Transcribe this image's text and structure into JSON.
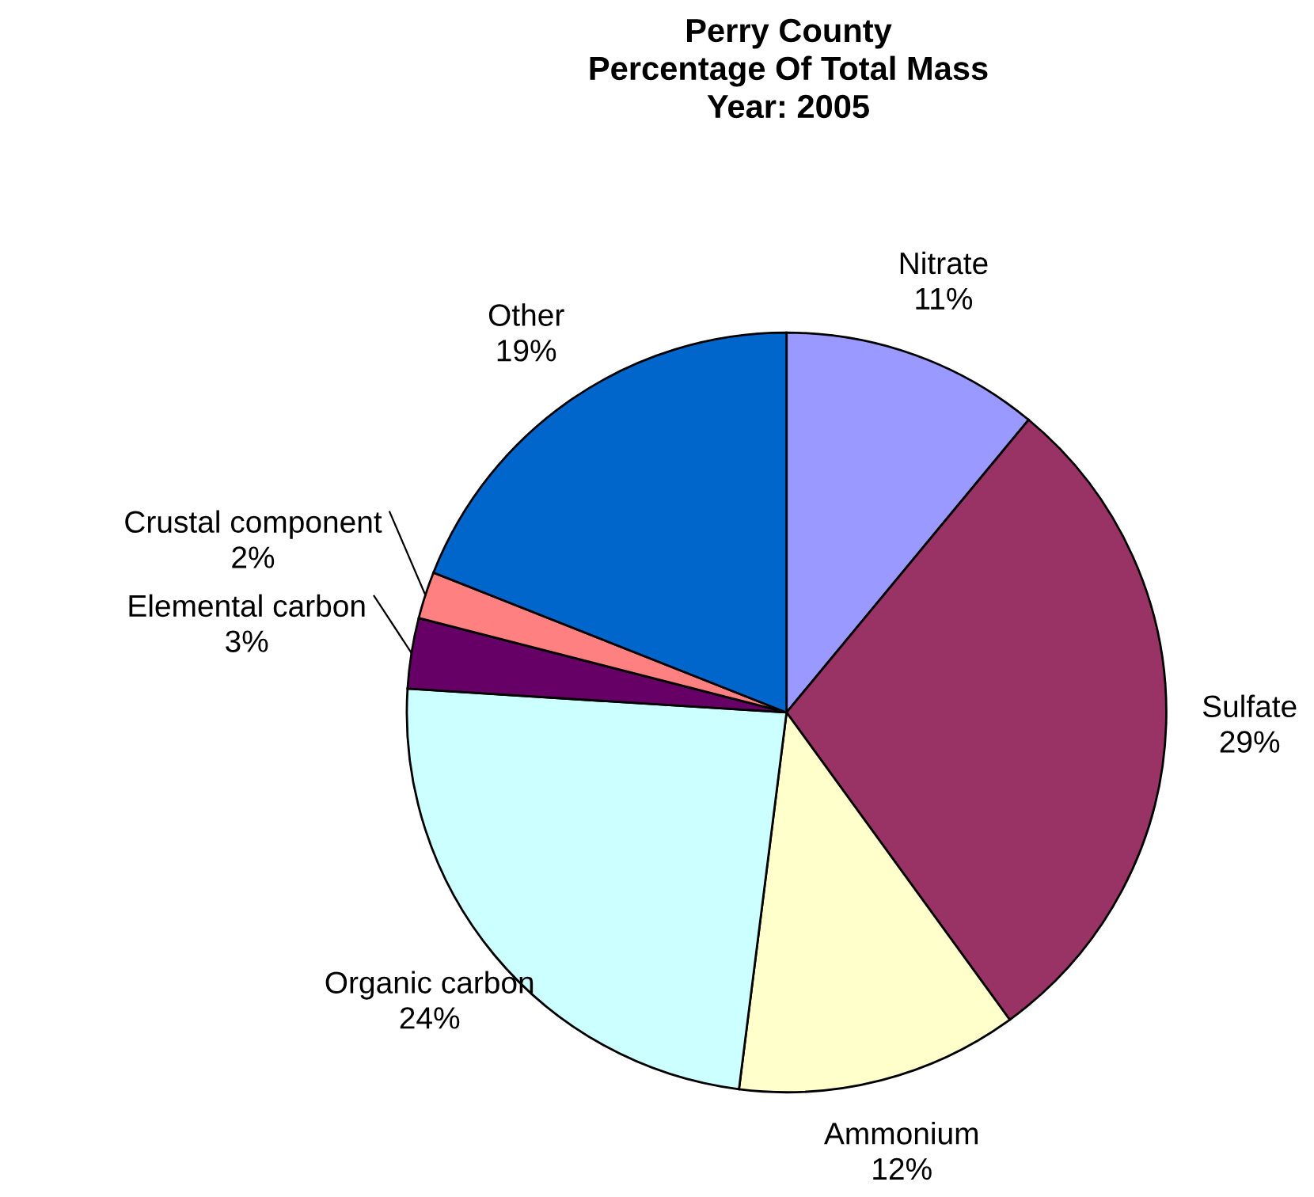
{
  "chart_data": {
    "type": "pie",
    "title": "Perry County\nPercentage Of Total Mass\nYear: 2005",
    "categories": [
      "Nitrate",
      "Sulfate",
      "Ammonium",
      "Organic carbon",
      "Elemental carbon",
      "Crustal component",
      "Other"
    ],
    "values": [
      11,
      29,
      12,
      24,
      3,
      2,
      19
    ],
    "colors": [
      "#9999ff",
      "#993366",
      "#ffffcc",
      "#ccffff",
      "#660066",
      "#ff8080",
      "#0066cc"
    ],
    "value_labels": [
      "11%",
      "29%",
      "12%",
      "24%",
      "3%",
      "2%",
      "19%"
    ],
    "legend": false
  }
}
